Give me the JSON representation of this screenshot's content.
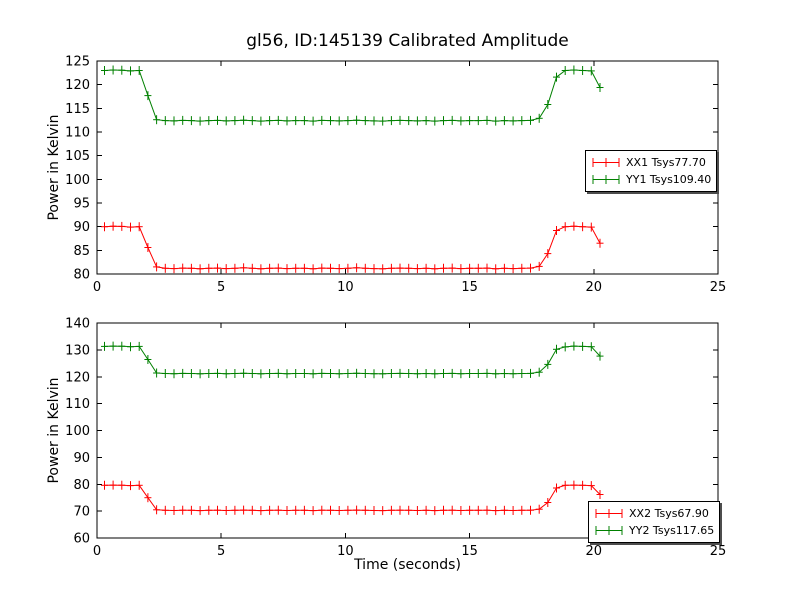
{
  "figure": {
    "title": "gl56, ID:145139 Calibrated Amplitude",
    "background": "#ffffff",
    "axis_color": "#000000",
    "text_color": "#000000"
  },
  "chart_data": [
    {
      "type": "line",
      "subplot": "top",
      "xlabel": "",
      "ylabel": "Power in Kelvin",
      "xlim": [
        0,
        25
      ],
      "ylim": [
        80,
        125
      ],
      "xticks": [
        0,
        5,
        10,
        15,
        20,
        25
      ],
      "yticks": [
        80,
        85,
        90,
        95,
        100,
        105,
        110,
        115,
        120,
        125
      ],
      "grid": false,
      "legend_position": "right-center",
      "marker": "plus-errorbar",
      "x": [
        0.3,
        0.65,
        1.0,
        1.35,
        1.7,
        2.05,
        2.4,
        2.75,
        3.1,
        3.45,
        3.8,
        4.15,
        4.5,
        4.85,
        5.2,
        5.55,
        5.9,
        6.25,
        6.6,
        6.95,
        7.3,
        7.65,
        8.0,
        8.35,
        8.7,
        9.05,
        9.4,
        9.75,
        10.1,
        10.45,
        10.8,
        11.15,
        11.5,
        11.85,
        12.2,
        12.55,
        12.9,
        13.25,
        13.6,
        13.95,
        14.3,
        14.65,
        15.0,
        15.35,
        15.7,
        16.05,
        16.4,
        16.75,
        17.1,
        17.45,
        17.8,
        18.15,
        18.5,
        18.85,
        19.2,
        19.55,
        19.9,
        20.25
      ],
      "series": [
        {
          "name": "XX1 Tsys77.70",
          "color": "#ff0000",
          "values": [
            90.0,
            90.1,
            90.05,
            89.9,
            90.0,
            85.6,
            81.5,
            81.2,
            81.15,
            81.25,
            81.2,
            81.1,
            81.2,
            81.25,
            81.15,
            81.2,
            81.3,
            81.2,
            81.1,
            81.2,
            81.25,
            81.15,
            81.2,
            81.2,
            81.1,
            81.25,
            81.2,
            81.15,
            81.2,
            81.3,
            81.2,
            81.15,
            81.1,
            81.2,
            81.25,
            81.2,
            81.15,
            81.2,
            81.1,
            81.2,
            81.25,
            81.15,
            81.2,
            81.2,
            81.25,
            81.1,
            81.2,
            81.15,
            81.2,
            81.25,
            81.6,
            84.3,
            89.2,
            90.0,
            90.1,
            90.0,
            89.9,
            86.5
          ]
        },
        {
          "name": "YY1 Tsys109.40",
          "color": "#008000",
          "values": [
            123.0,
            123.1,
            123.05,
            122.9,
            123.0,
            117.7,
            112.6,
            112.4,
            112.35,
            112.45,
            112.4,
            112.3,
            112.4,
            112.45,
            112.35,
            112.4,
            112.5,
            112.4,
            112.3,
            112.4,
            112.45,
            112.35,
            112.4,
            112.4,
            112.3,
            112.45,
            112.4,
            112.35,
            112.4,
            112.5,
            112.4,
            112.35,
            112.3,
            112.4,
            112.45,
            112.4,
            112.35,
            112.4,
            112.3,
            112.4,
            112.45,
            112.35,
            112.4,
            112.4,
            112.45,
            112.3,
            112.4,
            112.35,
            112.4,
            112.45,
            112.9,
            115.8,
            121.6,
            123.0,
            123.1,
            123.0,
            122.9,
            119.4
          ]
        }
      ]
    },
    {
      "type": "line",
      "subplot": "bottom",
      "xlabel": "Time (seconds)",
      "ylabel": "Power in Kelvin",
      "xlim": [
        0,
        25
      ],
      "ylim": [
        60,
        140
      ],
      "xticks": [
        0,
        5,
        10,
        15,
        20,
        25
      ],
      "yticks": [
        60,
        70,
        80,
        90,
        100,
        110,
        120,
        130,
        140
      ],
      "grid": false,
      "legend_position": "right-bottom",
      "marker": "plus-errorbar",
      "x": [
        0.3,
        0.65,
        1.0,
        1.35,
        1.7,
        2.05,
        2.4,
        2.75,
        3.1,
        3.45,
        3.8,
        4.15,
        4.5,
        4.85,
        5.2,
        5.55,
        5.9,
        6.25,
        6.6,
        6.95,
        7.3,
        7.65,
        8.0,
        8.35,
        8.7,
        9.05,
        9.4,
        9.75,
        10.1,
        10.45,
        10.8,
        11.15,
        11.5,
        11.85,
        12.2,
        12.55,
        12.9,
        13.25,
        13.6,
        13.95,
        14.3,
        14.65,
        15.0,
        15.35,
        15.7,
        16.05,
        16.4,
        16.75,
        17.1,
        17.45,
        17.8,
        18.15,
        18.5,
        18.85,
        19.2,
        19.55,
        19.9,
        20.25
      ],
      "series": [
        {
          "name": "XX2 Tsys67.90",
          "color": "#ff0000",
          "values": [
            79.6,
            79.7,
            79.65,
            79.5,
            79.6,
            75.0,
            70.5,
            70.3,
            70.25,
            70.35,
            70.3,
            70.2,
            70.3,
            70.35,
            70.25,
            70.3,
            70.4,
            70.3,
            70.2,
            70.3,
            70.35,
            70.25,
            70.3,
            70.3,
            70.2,
            70.35,
            70.3,
            70.25,
            70.3,
            70.4,
            70.3,
            70.25,
            70.2,
            70.3,
            70.35,
            70.3,
            70.25,
            70.3,
            70.2,
            70.3,
            70.35,
            70.25,
            70.3,
            70.3,
            70.35,
            70.2,
            70.3,
            70.25,
            70.3,
            70.35,
            70.7,
            73.2,
            78.6,
            79.6,
            79.7,
            79.6,
            79.5,
            76.2
          ]
        },
        {
          "name": "YY2 Tsys117.65",
          "color": "#008000",
          "values": [
            131.3,
            131.4,
            131.35,
            131.2,
            131.3,
            126.4,
            121.4,
            121.2,
            121.15,
            121.25,
            121.2,
            121.1,
            121.2,
            121.25,
            121.15,
            121.2,
            121.3,
            121.2,
            121.1,
            121.2,
            121.25,
            121.15,
            121.2,
            121.2,
            121.1,
            121.25,
            121.2,
            121.15,
            121.2,
            121.3,
            121.2,
            121.15,
            121.1,
            121.2,
            121.25,
            121.2,
            121.15,
            121.2,
            121.1,
            121.2,
            121.25,
            121.15,
            121.2,
            121.2,
            121.25,
            121.1,
            121.2,
            121.15,
            121.2,
            121.25,
            121.7,
            124.6,
            130.2,
            131.1,
            131.4,
            131.3,
            131.2,
            127.7
          ]
        }
      ]
    }
  ]
}
